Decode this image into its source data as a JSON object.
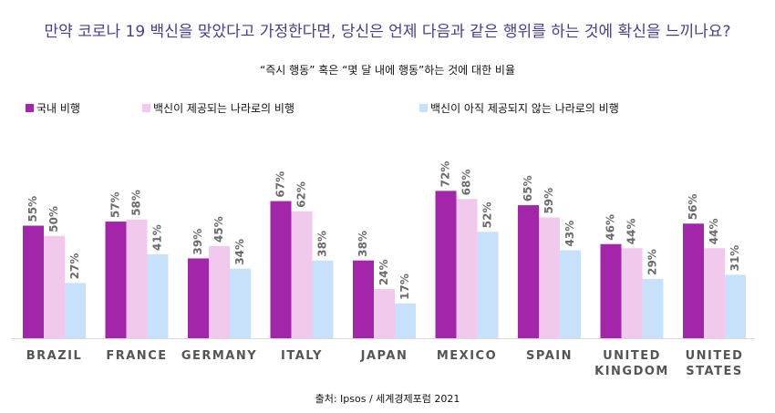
{
  "chart_data": {
    "type": "bar",
    "title": "만약 코로나 19 백신을 맞았다고 가정한다면, 당신은 언제 다음과 같은 행위를 하는 것에 확신을 느끼나요?",
    "subtitle": "“즉시 행동” 혹은 “몇 달 내에 행동”하는 것에 대한 비율",
    "source": "출처: Ipsos / 세계경제포럼 2021",
    "categories": [
      [
        "BRAZIL"
      ],
      [
        "FRANCE"
      ],
      [
        "GERMANY"
      ],
      [
        "ITALY"
      ],
      [
        "JAPAN"
      ],
      [
        "MEXICO"
      ],
      [
        "SPAIN"
      ],
      [
        "UNITED",
        "KINGDOM"
      ],
      [
        "UNITED",
        "STATES"
      ]
    ],
    "series": [
      {
        "name": "국내 비행",
        "color": "#a326aa",
        "values": [
          55,
          57,
          39,
          67,
          38,
          72,
          65,
          46,
          56
        ]
      },
      {
        "name": "백신이 제공되는 나라로의 비행",
        "color": "#f0c9ed",
        "values": [
          50,
          58,
          45,
          62,
          24,
          68,
          59,
          44,
          44
        ]
      },
      {
        "name": "백신이 아직 제공되지 않는 나라로의 비행",
        "color": "#c7e1fa",
        "values": [
          27,
          41,
          34,
          38,
          17,
          52,
          43,
          29,
          31
        ]
      }
    ],
    "value_suffix": "%",
    "ylim": [
      0,
      80
    ],
    "grid": false,
    "legend_position": "top-left"
  }
}
